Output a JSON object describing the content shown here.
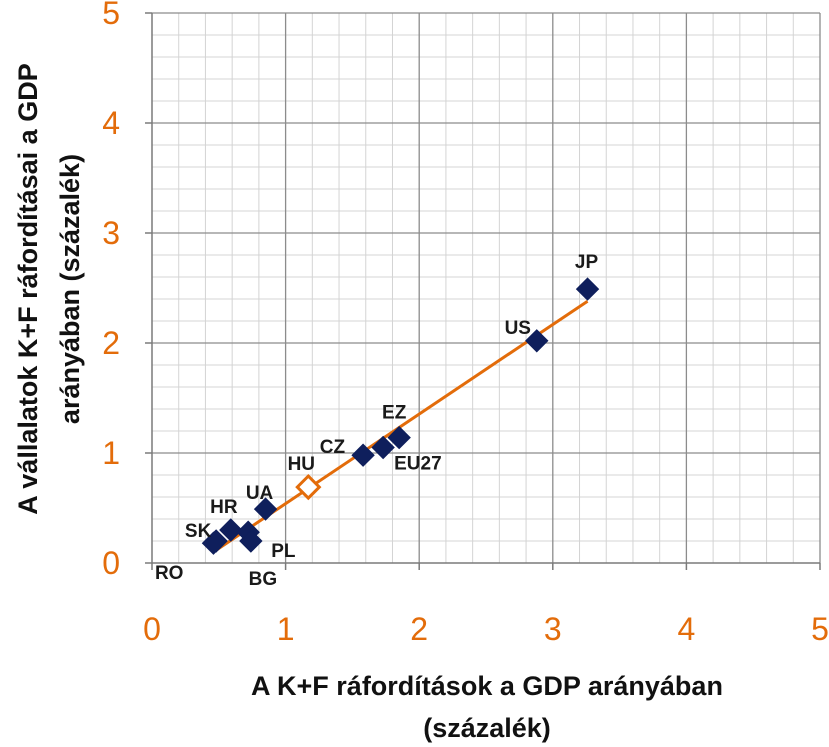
{
  "chart_data": {
    "type": "scatter",
    "title": "",
    "xlabel_lines": [
      "A K+F ráfordítások a GDP arányában",
      "(százalék)"
    ],
    "ylabel_lines": [
      "A vállalatok K+F ráfordításai a GDP",
      "arányában (százalék)"
    ],
    "xlim": [
      0,
      5
    ],
    "ylim": [
      0,
      5
    ],
    "x_ticks": [
      "0",
      "1",
      "2",
      "3",
      "4",
      "5"
    ],
    "y_ticks": [
      "0",
      "1",
      "2",
      "3",
      "4",
      "5"
    ],
    "grid": true,
    "minor_grid_step": 0.2,
    "tick_color": "#e36c0a",
    "point_color": "#0f1f5c",
    "highlight_fill": "#ffffff",
    "highlight_stroke": "#e36c0a",
    "trendline_color": "#e36c0a",
    "points": [
      {
        "label": "RO",
        "x": 0.46,
        "y": 0.18
      },
      {
        "label": "SK",
        "x": 0.48,
        "y": 0.2
      },
      {
        "label": "HR",
        "x": 0.59,
        "y": 0.3
      },
      {
        "label": "PL",
        "x": 0.72,
        "y": 0.28
      },
      {
        "label": "BG",
        "x": 0.74,
        "y": 0.2
      },
      {
        "label": "UA",
        "x": 0.85,
        "y": 0.49
      },
      {
        "label": "HU",
        "x": 1.17,
        "y": 0.69,
        "highlight": true
      },
      {
        "label": "CZ",
        "x": 1.58,
        "y": 0.98
      },
      {
        "label": "EU27",
        "x": 1.73,
        "y": 1.05
      },
      {
        "label": "EZ",
        "x": 1.85,
        "y": 1.14
      },
      {
        "label": "US",
        "x": 2.88,
        "y": 2.02
      },
      {
        "label": "JP",
        "x": 3.26,
        "y": 2.49
      }
    ],
    "trendline": {
      "x": [
        0.46,
        3.26
      ],
      "y": [
        0.1,
        2.38
      ]
    }
  }
}
